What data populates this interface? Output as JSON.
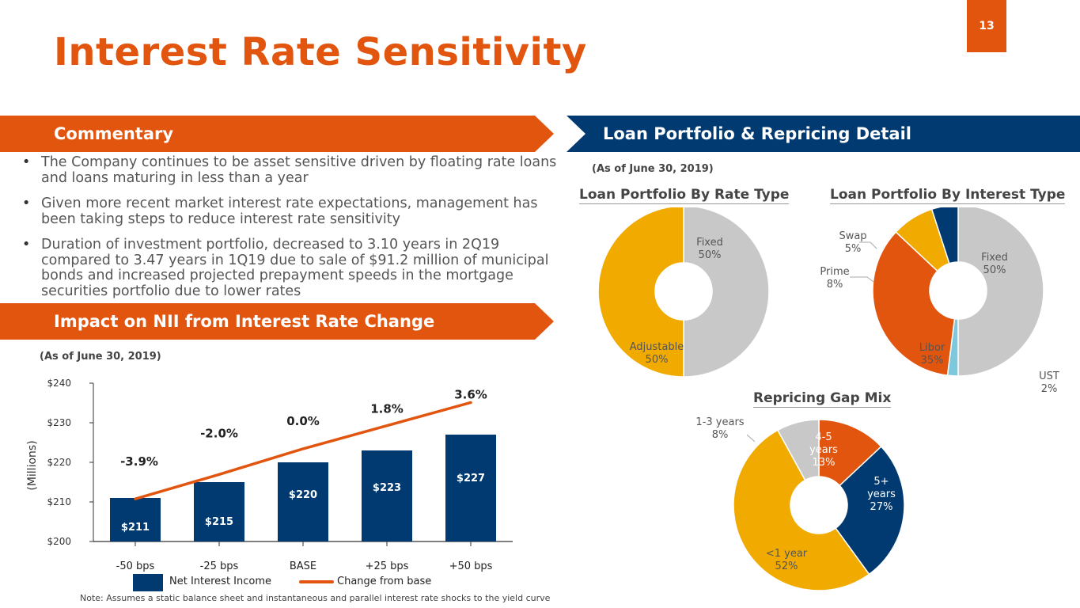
{
  "page_number": "13",
  "title": "Interest Rate Sensitivity",
  "commentary": {
    "heading": "Commentary",
    "bullets": [
      "The Company continues to be asset sensitive driven by floating rate loans and loans maturing in less than a year",
      "Given more recent market interest rate expectations, management has been taking steps to reduce interest rate sensitivity",
      "Duration of investment portfolio, decreased to 3.10 years in 2Q19 compared to 3.47 years in 1Q19 due to sale of $91.2 million of municipal bonds and increased projected prepayment speeds in the mortgage securities portfolio due to lower rates"
    ]
  },
  "nii": {
    "heading": "Impact on NII from Interest Rate Change",
    "as_of": "(As of June 30, 2019)",
    "note": "Note: Assumes a static balance sheet and instantaneous and parallel interest rate shocks to the yield curve"
  },
  "loan": {
    "heading": "Loan Portfolio & Repricing Detail",
    "as_of": "(As of June 30, 2019)"
  },
  "colors": {
    "orange": "#e2550f",
    "navy": "#003a70",
    "gray": "#c8c8c8",
    "gold": "#f0aa00",
    "light_blue": "#7ec8de"
  },
  "chart_data": [
    {
      "type": "bar",
      "title": "Impact on NII from Interest Rate Change",
      "ylabel": "(Millions)",
      "ylim": [
        200,
        240
      ],
      "yticks": [
        200,
        210,
        220,
        230,
        240
      ],
      "ytick_labels": [
        "$200",
        "$210",
        "$220",
        "$230",
        "$240"
      ],
      "categories": [
        "-50 bps",
        "-25 bps",
        "BASE",
        "+25 bps",
        "+50 bps"
      ],
      "series": [
        {
          "name": "Net Interest Income",
          "type": "bar",
          "values": [
            211,
            215,
            220,
            223,
            227
          ],
          "labels": [
            "$211",
            "$215",
            "$220",
            "$223",
            "$227"
          ]
        },
        {
          "name": "Change from base",
          "type": "line",
          "values": [
            -3.9,
            -2.0,
            0.0,
            1.8,
            3.6
          ],
          "labels": [
            "-3.9%",
            "-2.0%",
            "0.0%",
            "1.8%",
            "3.6%"
          ]
        }
      ],
      "legend": [
        "Net Interest Income",
        "Change from base"
      ]
    },
    {
      "type": "pie",
      "title": "Loan Portfolio By Rate Type",
      "slices": [
        {
          "label": "Fixed",
          "value": 50,
          "value_label": "50%"
        },
        {
          "label": "Adjustable",
          "value": 50,
          "value_label": "50%"
        }
      ]
    },
    {
      "type": "pie",
      "title": "Loan Portfolio By Interest Type",
      "slices": [
        {
          "label": "Fixed",
          "value": 50,
          "value_label": "50%"
        },
        {
          "label": "UST",
          "value": 2,
          "value_label": "2%"
        },
        {
          "label": "Libor",
          "value": 35,
          "value_label": "35%"
        },
        {
          "label": "Prime",
          "value": 8,
          "value_label": "8%"
        },
        {
          "label": "Swap",
          "value": 5,
          "value_label": "5%"
        }
      ]
    },
    {
      "type": "pie",
      "title": "Repricing Gap Mix",
      "slices": [
        {
          "label": "4-5 years",
          "value": 13,
          "value_label": "13%"
        },
        {
          "label": "5+ years",
          "value": 27,
          "value_label": "27%"
        },
        {
          "label": "<1 year",
          "value": 52,
          "value_label": "52%"
        },
        {
          "label": "1-3 years",
          "value": 8,
          "value_label": "8%"
        }
      ]
    }
  ]
}
